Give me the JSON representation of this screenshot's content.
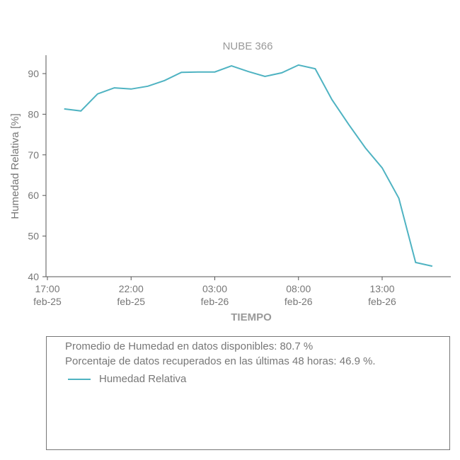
{
  "chart_data": {
    "type": "line",
    "title": "NUBE 366",
    "xlabel": "TIEMPO",
    "ylabel": "Humedad Relativa [%]",
    "ylim": [
      40,
      95
    ],
    "yticks": [
      40,
      50,
      60,
      70,
      80,
      90
    ],
    "xticks": [
      {
        "hour": 0,
        "label1": "17:00",
        "label2": "feb-25"
      },
      {
        "hour": 5,
        "label1": "22:00",
        "label2": "feb-25"
      },
      {
        "hour": 10,
        "label1": "03:00",
        "label2": "feb-26"
      },
      {
        "hour": 15,
        "label1": "08:00",
        "label2": "feb-26"
      },
      {
        "hour": 20,
        "label1": "13:00",
        "label2": "feb-26"
      }
    ],
    "xrange_hours": [
      0,
      24.5
    ],
    "series": [
      {
        "name": "Humedad Relativa",
        "color": "#4fb3c2",
        "x": [
          1,
          2,
          3,
          4,
          5,
          6,
          7,
          8,
          9,
          10,
          11,
          12,
          13,
          14,
          15,
          16,
          17,
          18,
          19,
          20,
          21,
          22,
          23
        ],
        "values": [
          81.3,
          80.8,
          85.0,
          86.5,
          86.2,
          86.9,
          88.3,
          90.3,
          90.4,
          90.4,
          91.9,
          90.5,
          89.3,
          90.2,
          92.1,
          91.2,
          83.6,
          77.5,
          71.7,
          66.8,
          59.3,
          43.5,
          42.6
        ]
      }
    ]
  },
  "info": {
    "line1": "Promedio de Humedad en datos disponibles: 80.7 %",
    "line2": "Porcentaje de datos recuperados en las últimas 48 horas: 46.9 %.",
    "legend_label": "Humedad Relativa"
  }
}
